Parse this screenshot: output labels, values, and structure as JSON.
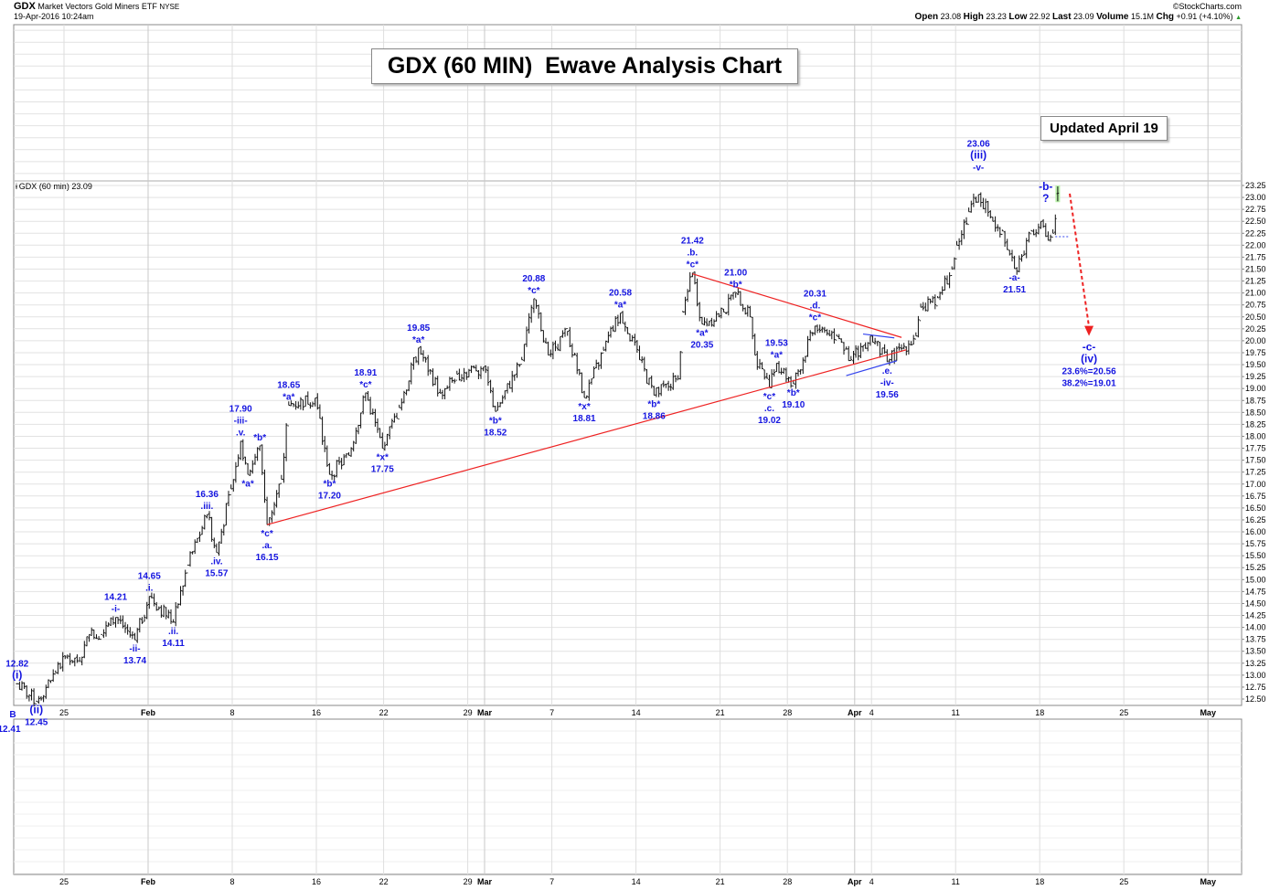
{
  "header": {
    "symbol": "GDX",
    "name": "Market Vectors Gold Miners ETF",
    "exchange": "NYSE",
    "datetime": "19-Apr-2016 10:24am",
    "copyright": "©StockCharts.com",
    "quote": [
      {
        "label": "Open",
        "value": "23.08"
      },
      {
        "label": "High",
        "value": "23.23"
      },
      {
        "label": "Low",
        "value": "22.92"
      },
      {
        "label": "Last",
        "value": "23.09"
      },
      {
        "label": "Volume",
        "value": "15.1M"
      },
      {
        "label": "Chg",
        "value": "+0.91 (+4.10%)"
      }
    ],
    "change_direction_icon": "up-triangle-icon"
  },
  "title_box": "GDX (60 MIN)  Ewave Analysis Chart",
  "updated_box": "Updated April 19",
  "legend": "GDX (60 min) 23.09",
  "corner_labels": {
    "b": "B",
    "low": "12.41"
  },
  "colors": {
    "annotation": "#1515e0",
    "trendline": "#ee2222",
    "channel": "#3344ee",
    "bars": "#111111",
    "grid": "#e2e2e2",
    "last_bar_highlight": "#b8f0a8"
  },
  "chart_data": {
    "type": "ohlc",
    "interval": "60 min",
    "ylim": [
      12.5,
      23.25
    ],
    "y_tick_step": 0.25,
    "grid": true,
    "y_axis": "right",
    "x_ticks": [
      {
        "label": "25",
        "date": "2016-01-25",
        "bold": false
      },
      {
        "label": "Feb",
        "date": "2016-02-01",
        "bold": true
      },
      {
        "label": "8",
        "date": "2016-02-08",
        "bold": false
      },
      {
        "label": "16",
        "date": "2016-02-16",
        "bold": false
      },
      {
        "label": "22",
        "date": "2016-02-22",
        "bold": false
      },
      {
        "label": "29",
        "date": "2016-02-29",
        "bold": false
      },
      {
        "label": "Mar",
        "date": "2016-03-01",
        "bold": true
      },
      {
        "label": "7",
        "date": "2016-03-07",
        "bold": false
      },
      {
        "label": "14",
        "date": "2016-03-14",
        "bold": false
      },
      {
        "label": "21",
        "date": "2016-03-21",
        "bold": false
      },
      {
        "label": "28",
        "date": "2016-03-28",
        "bold": false
      },
      {
        "label": "Apr",
        "date": "2016-04-01",
        "bold": true
      },
      {
        "label": "4",
        "date": "2016-04-04",
        "bold": false
      },
      {
        "label": "11",
        "date": "2016-04-11",
        "bold": false
      },
      {
        "label": "18",
        "date": "2016-04-18",
        "bold": false
      },
      {
        "label": "25",
        "date": "2016-04-25",
        "bold": false
      },
      {
        "label": "May",
        "date": "2016-05-02",
        "bold": true
      }
    ],
    "price_path": [
      [
        "2016-01-20 10:30",
        12.82
      ],
      [
        "2016-01-21 11:30",
        12.45
      ],
      [
        "2016-01-22 12:30",
        13.05
      ],
      [
        "2016-01-25 09:30",
        13.4
      ],
      [
        "2016-01-25 15:30",
        13.3
      ],
      [
        "2016-01-26 12:30",
        13.85
      ],
      [
        "2016-01-27 10:30",
        13.85
      ],
      [
        "2016-01-28 09:30",
        14.21
      ],
      [
        "2016-01-29 10:30",
        13.74
      ],
      [
        "2016-02-01 09:30",
        14.65
      ],
      [
        "2016-02-02 12:30",
        14.11
      ],
      [
        "2016-02-03 11:30",
        15.3
      ],
      [
        "2016-02-04 12:30",
        16.36
      ],
      [
        "2016-02-05 09:30",
        15.57
      ],
      [
        "2016-02-05 15:30",
        16.9
      ],
      [
        "2016-02-08 12:30",
        17.9
      ],
      [
        "2016-02-08 15:30",
        17.2
      ],
      [
        "2016-02-09 13:30",
        17.8
      ],
      [
        "2016-02-10 09:30",
        16.15
      ],
      [
        "2016-02-10 15:30",
        17.1
      ],
      [
        "2016-02-11 11:30",
        18.65
      ],
      [
        "2016-02-12 15:30",
        18.8
      ],
      [
        "2016-02-16 14:30",
        17.2
      ],
      [
        "2016-02-17 15:30",
        17.6
      ],
      [
        "2016-02-18 15:30",
        18.91
      ],
      [
        "2016-02-19 15:30",
        17.75
      ],
      [
        "2016-02-22 15:30",
        18.6
      ],
      [
        "2016-02-24 09:30",
        19.85
      ],
      [
        "2016-02-25 11:30",
        18.9
      ],
      [
        "2016-02-26 11:30",
        19.3
      ],
      [
        "2016-02-29 15:30",
        19.45
      ],
      [
        "2016-03-01 13:30",
        18.52
      ],
      [
        "2016-03-03 10:30",
        19.6
      ],
      [
        "2016-03-03 15:30",
        20.88
      ],
      [
        "2016-03-04 14:30",
        19.7
      ],
      [
        "2016-03-07 15:30",
        20.2
      ],
      [
        "2016-03-08 15:30",
        18.81
      ],
      [
        "2016-03-10 09:30",
        19.8
      ],
      [
        "2016-03-11 09:30",
        20.58
      ],
      [
        "2016-03-14 10:30",
        19.6
      ],
      [
        "2016-03-15 09:30",
        18.86
      ],
      [
        "2016-03-16 12:30",
        19.2
      ],
      [
        "2016-03-16 14:30",
        20.6
      ],
      [
        "2016-03-17 11:30",
        21.42
      ],
      [
        "2016-03-17 15:30",
        20.35
      ],
      [
        "2016-03-21 10:30",
        20.6
      ],
      [
        "2016-03-21 15:30",
        21.0
      ],
      [
        "2016-03-22 14:30",
        20.5
      ],
      [
        "2016-03-23 09:30",
        19.7
      ],
      [
        "2016-03-23 15:30",
        19.02
      ],
      [
        "2016-03-24 11:30",
        19.53
      ],
      [
        "2016-03-28 11:30",
        19.1
      ],
      [
        "2016-03-29 13:30",
        20.31
      ],
      [
        "2016-03-30 15:30",
        20.1
      ],
      [
        "2016-03-31 14:30",
        19.6
      ],
      [
        "2016-04-01 15:30",
        20.1
      ],
      [
        "2016-04-04 15:30",
        19.56
      ],
      [
        "2016-04-06 13:30",
        20.1
      ],
      [
        "2016-04-06 15:30",
        20.7
      ],
      [
        "2016-04-07 15:30",
        20.9
      ],
      [
        "2016-04-08 14:30",
        21.5
      ],
      [
        "2016-04-11 09:30",
        22.0
      ],
      [
        "2016-04-11 14:30",
        22.7
      ],
      [
        "2016-04-12 11:30",
        23.06
      ],
      [
        "2016-04-13 10:30",
        22.5
      ],
      [
        "2016-04-13 14:30",
        22.3
      ],
      [
        "2016-04-14 12:30",
        21.51
      ],
      [
        "2016-04-15 09:30",
        21.8
      ],
      [
        "2016-04-15 12:30",
        22.3
      ],
      [
        "2016-04-18 09:30",
        22.5
      ],
      [
        "2016-04-18 12:30",
        22.1
      ],
      [
        "2016-04-18 14:30",
        22.25
      ],
      [
        "2016-04-19 09:30",
        23.09
      ]
    ],
    "annotations": [
      {
        "t": "2016-01-20 10:30",
        "p": 12.82,
        "pos": "above",
        "lines": [
          "12.82",
          "(i)"
        ]
      },
      {
        "t": "2016-01-21 11:30",
        "p": 12.45,
        "pos": "below",
        "lines": [
          "(ii)",
          "12.45"
        ]
      },
      {
        "t": "2016-01-28 09:30",
        "p": 14.21,
        "pos": "above",
        "lines": [
          "14.21",
          "-i-"
        ]
      },
      {
        "t": "2016-01-29 10:30",
        "p": 13.74,
        "pos": "below",
        "lines": [
          "-ii-",
          "13.74"
        ]
      },
      {
        "t": "2016-02-01 09:30",
        "p": 14.65,
        "pos": "above",
        "lines": [
          "14.65",
          ".i."
        ]
      },
      {
        "t": "2016-02-02 12:30",
        "p": 14.11,
        "pos": "below",
        "lines": [
          ".ii.",
          "14.11"
        ]
      },
      {
        "t": "2016-02-04 12:30",
        "p": 16.36,
        "pos": "above",
        "lines": [
          "16.36",
          ".iii."
        ]
      },
      {
        "t": "2016-02-05 09:30",
        "p": 15.57,
        "pos": "below",
        "lines": [
          ".iv.",
          "15.57"
        ]
      },
      {
        "t": "2016-02-08 12:30",
        "p": 17.9,
        "pos": "above",
        "lines": [
          "17.90",
          "-iii-",
          ".v."
        ]
      },
      {
        "t": "2016-02-08 15:30",
        "p": 17.2,
        "pos": "below",
        "lines": [
          "*a*"
        ]
      },
      {
        "t": "2016-02-09 13:30",
        "p": 17.8,
        "pos": "above",
        "lines": [
          "*b*"
        ]
      },
      {
        "t": "2016-02-10 09:30",
        "p": 16.15,
        "pos": "below",
        "lines": [
          "*c*",
          ".a.",
          "16.15"
        ]
      },
      {
        "t": "2016-02-11 11:30",
        "p": 18.65,
        "pos": "above",
        "lines": [
          "18.65",
          "*a*"
        ]
      },
      {
        "t": "2016-02-16 14:30",
        "p": 17.2,
        "pos": "below",
        "lines": [
          "*b*",
          "17.20"
        ]
      },
      {
        "t": "2016-02-18 15:30",
        "p": 18.91,
        "pos": "above",
        "lines": [
          "18.91",
          "*c*"
        ]
      },
      {
        "t": "2016-02-19 15:30",
        "p": 17.75,
        "pos": "below",
        "lines": [
          "*x*",
          "17.75"
        ]
      },
      {
        "t": "2016-02-24 09:30",
        "p": 19.85,
        "pos": "above",
        "lines": [
          "19.85",
          "*a*"
        ]
      },
      {
        "t": "2016-03-01 13:30",
        "p": 18.52,
        "pos": "below",
        "lines": [
          "*b*",
          "18.52"
        ]
      },
      {
        "t": "2016-03-03 15:30",
        "p": 20.88,
        "pos": "above",
        "lines": [
          "20.88",
          "*c*"
        ]
      },
      {
        "t": "2016-03-08 15:30",
        "p": 18.81,
        "pos": "below",
        "lines": [
          "*x*",
          "18.81"
        ]
      },
      {
        "t": "2016-03-11 09:30",
        "p": 20.58,
        "pos": "above",
        "lines": [
          "20.58",
          "*a*"
        ]
      },
      {
        "t": "2016-03-15 09:30",
        "p": 18.86,
        "pos": "below",
        "lines": [
          "*b*",
          "18.86"
        ]
      },
      {
        "t": "2016-03-17 11:30",
        "p": 21.42,
        "pos": "above",
        "lines": [
          "21.42",
          ".b.",
          "*c*"
        ]
      },
      {
        "t": "2016-03-17 15:30",
        "p": 20.35,
        "pos": "below",
        "lines": [
          "*a*",
          "20.35"
        ]
      },
      {
        "t": "2016-03-21 15:30",
        "p": 21.0,
        "pos": "above",
        "lines": [
          "21.00",
          "*b*"
        ]
      },
      {
        "t": "2016-03-23 15:30",
        "p": 19.02,
        "pos": "below",
        "lines": [
          "*c*",
          ".c.",
          "19.02"
        ]
      },
      {
        "t": "2016-03-24 11:30",
        "p": 19.53,
        "pos": "above",
        "lines": [
          "19.53",
          "*a*"
        ]
      },
      {
        "t": "2016-03-28 11:30",
        "p": 19.1,
        "pos": "below",
        "lines": [
          "*b*",
          "19.10"
        ]
      },
      {
        "t": "2016-03-29 13:30",
        "p": 20.31,
        "pos": "above",
        "lines": [
          "20.31",
          ".d.",
          "*c*"
        ]
      },
      {
        "t": "2016-04-04 15:30",
        "p": 19.56,
        "pos": "below",
        "lines": [
          ".e.",
          "-iv-",
          "19.56"
        ]
      },
      {
        "t": "2016-04-12 11:30",
        "p": 23.45,
        "pos": "above",
        "lines": [
          "23.06",
          "(iii)",
          "-v-"
        ]
      },
      {
        "t": "2016-04-14 12:30",
        "p": 21.51,
        "pos": "below",
        "lines": [
          "-a-",
          "21.51"
        ]
      },
      {
        "t": "2016-04-18 11:30",
        "p": 23.4,
        "pos": "below",
        "lines": [
          "-b-",
          "?"
        ]
      },
      {
        "t": "2016-04-20 15:30",
        "p": 20.05,
        "pos": "below",
        "lines": [
          "-c-",
          "(iv)",
          "23.6%=20.56",
          "38.2%=19.01"
        ]
      }
    ],
    "trendlines": [
      {
        "kind": "red",
        "from": [
          "2016-02-10 09:30",
          16.15
        ],
        "to": [
          "2016-04-06 09:30",
          19.81
        ]
      },
      {
        "kind": "red",
        "from": [
          "2016-03-17 11:30",
          21.4
        ],
        "to": [
          "2016-04-05 14:30",
          20.07
        ]
      },
      {
        "kind": "blue",
        "from": [
          "2016-03-31 12:30",
          19.27
        ],
        "to": [
          "2016-04-05 12:30",
          19.58
        ]
      },
      {
        "kind": "blue",
        "from": [
          "2016-04-01 12:30",
          20.14
        ],
        "to": [
          "2016-04-05 11:30",
          20.06
        ]
      }
    ],
    "dotted_level": {
      "price": 22.18,
      "from": "2016-04-18 15:30",
      "to": "2016-04-19 14:30"
    },
    "projection_arrow": {
      "from": [
        "2016-04-19 14:30",
        23.08
      ],
      "to": [
        "2016-04-20 15:30",
        20.1
      ]
    }
  }
}
